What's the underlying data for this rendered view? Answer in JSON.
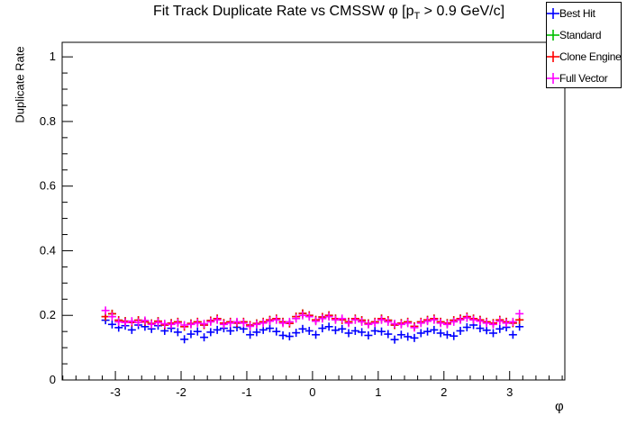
{
  "title": {
    "prefix": "Fit Track Duplicate Rate vs CMSSW φ [p",
    "sub": "T",
    "suffix": " > 0.9 GeV/c]"
  },
  "axes": {
    "y_title": "Duplicate Rate",
    "x_title": "φ"
  },
  "legend": {
    "position": "top-right",
    "entries": [
      {
        "label": "Best Hit",
        "color": "#0000ff"
      },
      {
        "label": "Standard",
        "color": "#00bf00"
      },
      {
        "label": "Clone Engine",
        "color": "#ff0000"
      },
      {
        "label": "Full Vector",
        "color": "#ff00ff"
      }
    ]
  },
  "chart_data": {
    "type": "scatter",
    "marker": "plus",
    "title": "Fit Track Duplicate Rate vs CMSSW φ [p_T > 0.9 GeV/c]",
    "xlabel": "φ",
    "ylabel": "Duplicate Rate",
    "xlim": [
      -3.81,
      3.84
    ],
    "ylim": [
      0,
      1.045
    ],
    "x_ticks": [
      -3,
      -2,
      -1,
      0,
      1,
      2,
      3
    ],
    "x_tick_labels": [
      "-3",
      "-2",
      "-1",
      "0",
      "1",
      "2",
      "3"
    ],
    "y_ticks": [
      0,
      0.2,
      0.4,
      0.6,
      0.8,
      1
    ],
    "y_tick_labels": [
      "0",
      "0.2",
      "0.4",
      "0.6",
      "0.8",
      "1"
    ],
    "x_minor_step": 0.2,
    "y_minor_step": 0.05,
    "grid": false,
    "legend_position": "top-right",
    "x": [
      -3.15,
      -3.05,
      -2.95,
      -2.85,
      -2.75,
      -2.65,
      -2.55,
      -2.45,
      -2.35,
      -2.25,
      -2.15,
      -2.05,
      -1.95,
      -1.85,
      -1.75,
      -1.65,
      -1.55,
      -1.45,
      -1.35,
      -1.25,
      -1.15,
      -1.05,
      -0.95,
      -0.85,
      -0.75,
      -0.65,
      -0.55,
      -0.45,
      -0.35,
      -0.25,
      -0.15,
      -0.05,
      0.05,
      0.15,
      0.25,
      0.35,
      0.45,
      0.55,
      0.65,
      0.75,
      0.85,
      0.95,
      1.05,
      1.15,
      1.25,
      1.35,
      1.45,
      1.55,
      1.65,
      1.75,
      1.85,
      1.95,
      2.05,
      2.15,
      2.25,
      2.35,
      2.45,
      2.55,
      2.65,
      2.75,
      2.85,
      2.95,
      3.05,
      3.15
    ],
    "series": [
      {
        "name": "Best Hit",
        "color": "#0000ff",
        "values": [
          0.185,
          0.172,
          0.162,
          0.168,
          0.155,
          0.17,
          0.165,
          0.158,
          0.168,
          0.152,
          0.16,
          0.148,
          0.126,
          0.142,
          0.15,
          0.132,
          0.148,
          0.155,
          0.16,
          0.152,
          0.163,
          0.158,
          0.14,
          0.148,
          0.155,
          0.16,
          0.15,
          0.138,
          0.135,
          0.146,
          0.158,
          0.152,
          0.14,
          0.16,
          0.165,
          0.154,
          0.158,
          0.145,
          0.152,
          0.148,
          0.138,
          0.152,
          0.15,
          0.142,
          0.125,
          0.14,
          0.134,
          0.13,
          0.145,
          0.15,
          0.155,
          0.145,
          0.14,
          0.136,
          0.152,
          0.163,
          0.17,
          0.16,
          0.154,
          0.145,
          0.158,
          0.163,
          0.14,
          0.165
        ]
      },
      {
        "name": "Standard",
        "color": "#00bf00",
        "note": "overlaps Clone Engine (hidden beneath)",
        "values": [
          0.196,
          0.205,
          0.185,
          0.182,
          0.178,
          0.185,
          0.18,
          0.175,
          0.182,
          0.17,
          0.176,
          0.18,
          0.165,
          0.175,
          0.18,
          0.17,
          0.184,
          0.19,
          0.176,
          0.18,
          0.176,
          0.18,
          0.17,
          0.175,
          0.18,
          0.186,
          0.19,
          0.18,
          0.175,
          0.196,
          0.206,
          0.2,
          0.186,
          0.195,
          0.2,
          0.19,
          0.186,
          0.18,
          0.19,
          0.185,
          0.175,
          0.18,
          0.19,
          0.185,
          0.17,
          0.176,
          0.18,
          0.166,
          0.18,
          0.186,
          0.19,
          0.18,
          0.176,
          0.185,
          0.19,
          0.196,
          0.19,
          0.186,
          0.18,
          0.176,
          0.186,
          0.18,
          0.176,
          0.186
        ]
      },
      {
        "name": "Clone Engine",
        "color": "#ff0000",
        "values": [
          0.196,
          0.205,
          0.185,
          0.182,
          0.178,
          0.185,
          0.18,
          0.175,
          0.182,
          0.17,
          0.176,
          0.18,
          0.165,
          0.175,
          0.18,
          0.17,
          0.184,
          0.19,
          0.176,
          0.18,
          0.176,
          0.18,
          0.17,
          0.175,
          0.18,
          0.186,
          0.19,
          0.18,
          0.175,
          0.196,
          0.206,
          0.2,
          0.186,
          0.195,
          0.2,
          0.19,
          0.186,
          0.18,
          0.19,
          0.185,
          0.175,
          0.18,
          0.19,
          0.185,
          0.17,
          0.176,
          0.18,
          0.166,
          0.18,
          0.186,
          0.19,
          0.18,
          0.176,
          0.185,
          0.19,
          0.196,
          0.19,
          0.186,
          0.18,
          0.176,
          0.186,
          0.18,
          0.176,
          0.186
        ]
      },
      {
        "name": "Full Vector",
        "color": "#ff00ff",
        "values": [
          0.215,
          0.196,
          0.18,
          0.178,
          0.182,
          0.178,
          0.184,
          0.172,
          0.178,
          0.174,
          0.172,
          0.176,
          0.17,
          0.172,
          0.176,
          0.174,
          0.18,
          0.186,
          0.172,
          0.176,
          0.18,
          0.176,
          0.166,
          0.172,
          0.176,
          0.182,
          0.186,
          0.176,
          0.18,
          0.19,
          0.2,
          0.196,
          0.182,
          0.19,
          0.196,
          0.186,
          0.19,
          0.176,
          0.186,
          0.18,
          0.172,
          0.176,
          0.186,
          0.18,
          0.174,
          0.172,
          0.176,
          0.162,
          0.176,
          0.182,
          0.186,
          0.176,
          0.172,
          0.18,
          0.186,
          0.192,
          0.186,
          0.182,
          0.176,
          0.172,
          0.182,
          0.176,
          0.18,
          0.205
        ]
      }
    ]
  }
}
